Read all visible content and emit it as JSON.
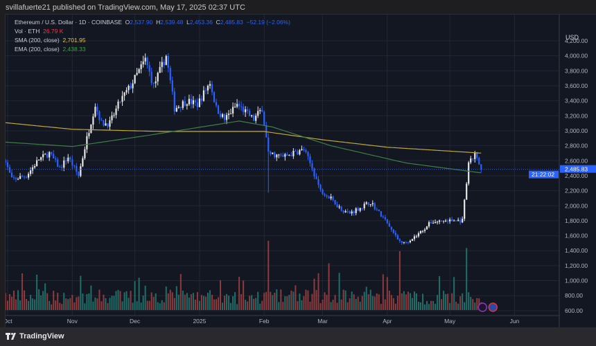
{
  "header": {
    "published": "svillafuerte21 published on TradingView.com, May 17, 2025 02:37 UTC"
  },
  "legend": {
    "symbol": "Ethereum / U.S. Dollar · 1D · COINBASE",
    "o_label": "O",
    "o": "2,537.90",
    "h_label": "H",
    "h": "2,539.48",
    "l_label": "L",
    "l": "2,453.36",
    "c_label": "C",
    "c": "2,485.83",
    "change": "−52.19 (−2.06%)",
    "vol_label": "Vol · ETH",
    "vol": "26.79 K",
    "sma_label": "SMA (200, close)",
    "sma": "2,701.95",
    "ema_label": "EMA (200, close)",
    "ema": "2,438.33"
  },
  "price_axis": {
    "currency": "USD",
    "last_price": "2,485.83",
    "countdown": "21:22:02"
  },
  "footer": {
    "brand": "TradingView"
  },
  "colors": {
    "up": "#e8e8e8",
    "down": "#2962ff",
    "vol_up": "#1f6f68",
    "vol_down": "#8e3b3d",
    "sma": "#c2a83a",
    "ema": "#3f7f45",
    "background": "#131722"
  },
  "chart_data": {
    "type": "candlestick",
    "ylim": [
      600,
      4300
    ],
    "yticks": [
      600,
      800,
      1000,
      1200,
      1400,
      1600,
      1800,
      2000,
      2200,
      2400,
      2600,
      2800,
      3000,
      3200,
      3400,
      3600,
      3800,
      4000,
      4200
    ],
    "ytick_labels": [
      "600.00",
      "800.00",
      "1,000.00",
      "1,200.00",
      "1,400.00",
      "1,600.00",
      "1,800.00",
      "2,000.00",
      "2,200.00",
      "2,400.00",
      "2,600.00",
      "2,800.00",
      "3,000.00",
      "3,200.00",
      "3,400.00",
      "3,600.00",
      "3,800.00",
      "4,000.00",
      "4,200.00"
    ],
    "xticks": [
      {
        "label": "Oct",
        "date": "2024-10-01"
      },
      {
        "label": "Nov",
        "date": "2024-11-01"
      },
      {
        "label": "Dec",
        "date": "2024-12-01"
      },
      {
        "label": "2025",
        "date": "2025-01-01"
      },
      {
        "label": "Feb",
        "date": "2025-02-01"
      },
      {
        "label": "Mar",
        "date": "2025-03-01"
      },
      {
        "label": "Apr",
        "date": "2025-04-01"
      },
      {
        "label": "May",
        "date": "2025-05-01"
      },
      {
        "label": "Jun",
        "date": "2025-06-01"
      }
    ],
    "close_waypoints": [
      [
        "2024-09-29",
        2650
      ],
      [
        "2024-10-03",
        2350
      ],
      [
        "2024-10-10",
        2400
      ],
      [
        "2024-10-16",
        2620
      ],
      [
        "2024-10-21",
        2700
      ],
      [
        "2024-10-26",
        2500
      ],
      [
        "2024-10-30",
        2650
      ],
      [
        "2024-11-04",
        2400
      ],
      [
        "2024-11-08",
        2900
      ],
      [
        "2024-11-12",
        3350
      ],
      [
        "2024-11-15",
        3100
      ],
      [
        "2024-11-19",
        3100
      ],
      [
        "2024-11-24",
        3400
      ],
      [
        "2024-11-29",
        3600
      ],
      [
        "2024-12-06",
        3950
      ],
      [
        "2024-12-10",
        3600
      ],
      [
        "2024-12-16",
        4000
      ],
      [
        "2024-12-20",
        3300
      ],
      [
        "2024-12-26",
        3400
      ],
      [
        "2024-12-31",
        3350
      ],
      [
        "2025-01-06",
        3650
      ],
      [
        "2025-01-09",
        3300
      ],
      [
        "2025-01-13",
        3150
      ],
      [
        "2025-01-19",
        3350
      ],
      [
        "2025-01-27",
        3150
      ],
      [
        "2025-01-31",
        3300
      ],
      [
        "2025-02-03",
        2700
      ],
      [
        "2025-02-10",
        2650
      ],
      [
        "2025-02-20",
        2750
      ],
      [
        "2025-02-24",
        2500
      ],
      [
        "2025-02-28",
        2200
      ],
      [
        "2025-03-03",
        2150
      ],
      [
        "2025-03-10",
        1950
      ],
      [
        "2025-03-14",
        1900
      ],
      [
        "2025-03-24",
        2050
      ],
      [
        "2025-03-31",
        1800
      ],
      [
        "2025-04-06",
        1550
      ],
      [
        "2025-04-09",
        1500
      ],
      [
        "2025-04-15",
        1600
      ],
      [
        "2025-04-22",
        1780
      ],
      [
        "2025-04-28",
        1800
      ],
      [
        "2025-05-07",
        1800
      ],
      [
        "2025-05-09",
        2300
      ],
      [
        "2025-05-10",
        2550
      ],
      [
        "2025-05-13",
        2680
      ],
      [
        "2025-05-16",
        2485.83
      ]
    ],
    "sma_200": [
      [
        "2024-09-29",
        3110
      ],
      [
        "2024-11-01",
        3020
      ],
      [
        "2024-12-15",
        2990
      ],
      [
        "2025-02-01",
        2990
      ],
      [
        "2025-03-01",
        2880
      ],
      [
        "2025-04-01",
        2780
      ],
      [
        "2025-05-16",
        2701.95
      ]
    ],
    "ema_200": [
      [
        "2024-09-29",
        2850
      ],
      [
        "2024-11-01",
        2790
      ],
      [
        "2024-12-10",
        2950
      ],
      [
        "2025-01-20",
        3130
      ],
      [
        "2025-02-05",
        3050
      ],
      [
        "2025-03-05",
        2800
      ],
      [
        "2025-04-10",
        2570
      ],
      [
        "2025-05-16",
        2438.33
      ]
    ],
    "volume_spike_dates": [
      "2025-02-03",
      "2025-04-07",
      "2025-03-04",
      "2025-05-09"
    ]
  }
}
